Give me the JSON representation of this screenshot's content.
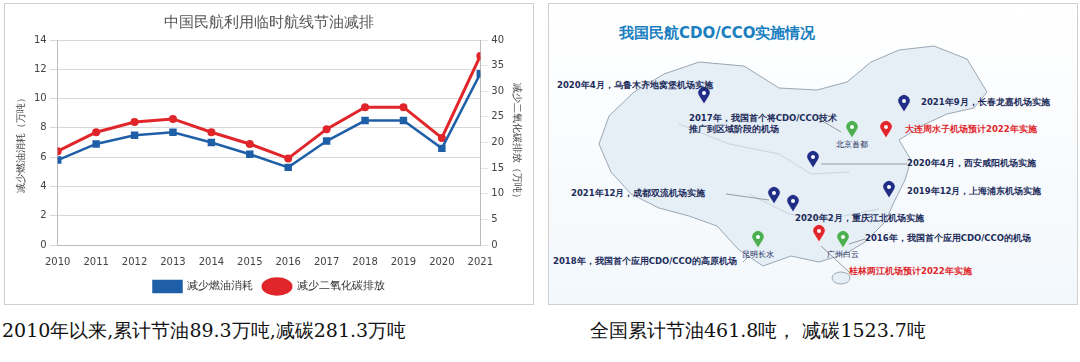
{
  "chart_data": {
    "type": "line",
    "title": "中国民航利用临时航线节油减排",
    "categories": [
      "2010",
      "2011",
      "2012",
      "2013",
      "2014",
      "2015",
      "2016",
      "2017",
      "2018",
      "2019",
      "2020",
      "2021"
    ],
    "series": [
      {
        "name": "减少燃油消耗",
        "color": "#1f5fa8",
        "marker": "square",
        "line_style": "solid",
        "values": [
          5.8,
          6.9,
          7.5,
          7.7,
          7.0,
          6.2,
          5.3,
          7.1,
          8.5,
          8.5,
          6.6,
          11.7
        ]
      },
      {
        "name": "减少二氧化碳排放",
        "color": "#e0262a",
        "marker": "circle",
        "line_style": "solid",
        "axis": "y2",
        "values": [
          18.3,
          22.0,
          24.0,
          24.6,
          22.0,
          19.7,
          16.9,
          22.6,
          26.9,
          26.9,
          20.9,
          36.9
        ]
      }
    ],
    "y_label": "减少燃油消耗（万吨）",
    "y2_label": "减少二氧化碳排放（万吨）",
    "ylim": [
      0,
      14
    ],
    "yticks": [
      0,
      2,
      4,
      6,
      8,
      10,
      12,
      14
    ],
    "y2lim": [
      0,
      40
    ],
    "y2ticks": [
      0,
      5,
      10,
      15,
      20,
      25,
      30,
      35,
      40
    ],
    "grid": true,
    "legend": "bottom"
  },
  "map": {
    "title": "我国民航CDO/CCO实施情况",
    "markers": [
      {
        "label": "2020年4月，乌鲁木齐地窝堡机场实施",
        "color": "#1f2d86"
      },
      {
        "label": "2017年，我国首个将CDO/CCO技术推广到区域阶段的机场",
        "name": "北京首都",
        "color": "#4caf50"
      },
      {
        "label": "2021年9月，长春龙嘉机场实施",
        "color": "#1f2d86"
      },
      {
        "label": "大连周水子机场预计2022年实施",
        "color": "#e0262a"
      },
      {
        "label": "2020年4月，西安咸阳机场实施",
        "color": "#1f2d86"
      },
      {
        "label": "2019年12月，上海浦东机场实施",
        "color": "#1f2d86"
      },
      {
        "label": "2021年12月，成都双流机场实施",
        "color": "#1f2d86"
      },
      {
        "label": "2020年2月，重庆江北机场实施",
        "color": "#1f2d86"
      },
      {
        "label": "2016年，我国首个应用CDO/CCO的机场",
        "name": "广州白云",
        "color": "#4caf50"
      },
      {
        "label": "2018年，我国首个应用CDO/CCO的高原机场",
        "name": "昆明长水",
        "color": "#4caf50"
      },
      {
        "label": "桂林两江机场预计2022年实施",
        "color": "#e0262a"
      }
    ]
  },
  "captions": [
    "2010年以来,累计节油89.3万吨,减碳281.3万吨",
    "全国累计节油461.8吨， 减碳1523.7吨"
  ]
}
